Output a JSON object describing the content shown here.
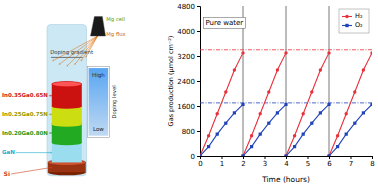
{
  "chart_data": [
    {
      "type": "diagram",
      "colors": [
        "#cc1111",
        "#ccdd11",
        "#22aa22",
        "#99ddee"
      ],
      "annotations": [
        {
          "text": "In0.35Ga0.65N",
          "color": "#cc2222"
        },
        {
          "text": "In0.25Ga0.75N",
          "color": "#999900"
        },
        {
          "text": "In0.20Ga0.80N",
          "color": "#229922"
        },
        {
          "text": "GaN",
          "color": "#22aacc"
        },
        {
          "text": "Si",
          "color": "#cc4422"
        },
        {
          "text": "Doping gradient",
          "color": "#333333"
        },
        {
          "text": "Mg cell",
          "color": "#559900"
        },
        {
          "text": "Mg flux",
          "color": "#cc6600"
        },
        {
          "text": "High",
          "color": "#222222"
        },
        {
          "text": "Low",
          "color": "#222222"
        },
        {
          "text": "Doping level",
          "color": "#222222"
        }
      ]
    },
    {
      "type": "line",
      "xlabel": "Time (hours)",
      "ylabel": "Gas production (μmol cm⁻²)",
      "xlim": [
        0,
        8
      ],
      "ylim": [
        0,
        4800
      ],
      "xticks": [
        0,
        1,
        2,
        3,
        4,
        5,
        6,
        7,
        8
      ],
      "yticks": [
        0,
        800,
        1600,
        2400,
        3200,
        4000,
        4800
      ],
      "grid": false,
      "legend": "upper right",
      "series": [
        {
          "name": "H₂",
          "color": "#e8303a",
          "marker": "circle",
          "line_style": "solid",
          "x": [
            0.0,
            0.4,
            0.8,
            1.2,
            1.6,
            2.0,
            null,
            2.0,
            2.4,
            2.8,
            3.2,
            3.6,
            4.0,
            null,
            4.0,
            4.4,
            4.8,
            5.2,
            5.6,
            6.0,
            null,
            6.0,
            6.4,
            6.8,
            7.2,
            7.6,
            8.0
          ],
          "values": [
            0,
            650,
            1350,
            2050,
            2750,
            3300,
            null,
            0,
            650,
            1350,
            2050,
            2750,
            3300,
            null,
            0,
            650,
            1350,
            2050,
            2750,
            3300,
            null,
            0,
            650,
            1350,
            2050,
            2750,
            3300
          ]
        },
        {
          "name": "O₂",
          "color": "#2244bb",
          "marker": "square",
          "line_style": "solid",
          "x": [
            0.0,
            0.4,
            0.8,
            1.2,
            1.6,
            2.0,
            null,
            2.0,
            2.4,
            2.8,
            3.2,
            3.6,
            4.0,
            null,
            4.0,
            4.4,
            4.8,
            5.2,
            5.6,
            6.0,
            null,
            6.0,
            6.4,
            6.8,
            7.2,
            7.6,
            8.0
          ],
          "values": [
            0,
            300,
            700,
            1050,
            1380,
            1650,
            null,
            0,
            300,
            700,
            1050,
            1380,
            1650,
            null,
            0,
            300,
            700,
            1050,
            1380,
            1650,
            null,
            0,
            300,
            700,
            1050,
            1380,
            1650
          ]
        }
      ],
      "hlines": [
        {
          "value": 3400,
          "color": "#e8303a",
          "line_style": "dashdot"
        },
        {
          "value": 1700,
          "color": "#2244bb",
          "line_style": "dashdot"
        }
      ],
      "vlines": [
        2,
        4,
        6
      ],
      "annotations": [
        {
          "text": "Pure water"
        }
      ]
    }
  ]
}
